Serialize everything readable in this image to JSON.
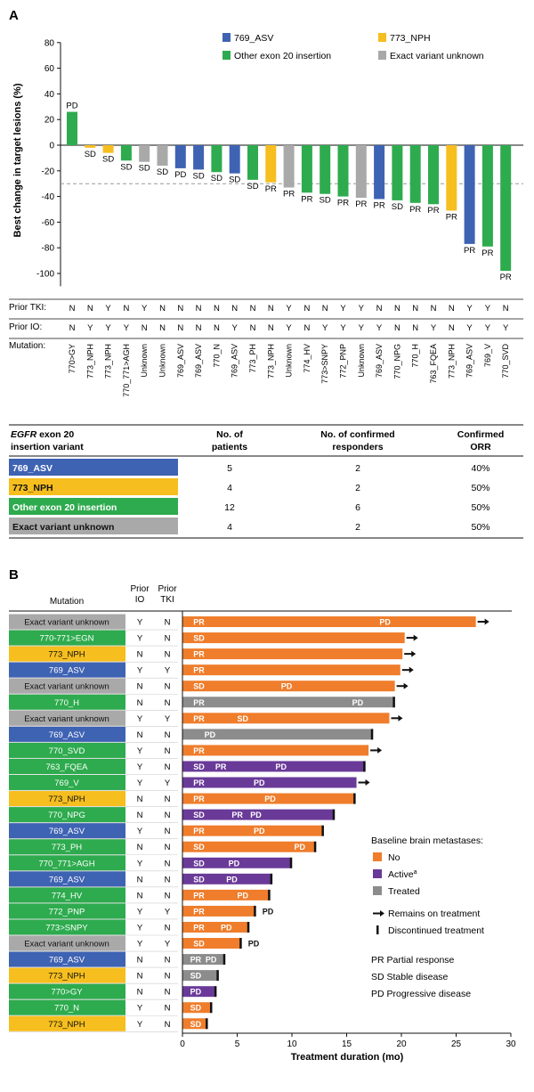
{
  "colors": {
    "asv": "#3f63b3",
    "nph": "#f6be1e",
    "other": "#2eab4e",
    "unknown": "#a9a9a9",
    "no": "#ef7d2b",
    "active": "#6a3a99",
    "treated": "#8c8c8c"
  },
  "panelA": {
    "label": "A",
    "legend": [
      {
        "name": "769_ASV",
        "color": "asv"
      },
      {
        "name": "773_NPH",
        "color": "nph"
      },
      {
        "name": "Other exon 20 insertion",
        "color": "other"
      },
      {
        "name": "Exact variant unknown",
        "color": "unknown"
      }
    ],
    "row_labels": {
      "tki": "Prior TKI:",
      "io": "Prior IO:",
      "mut": "Mutation:"
    },
    "table": {
      "header": {
        "variant_em": "EGFR",
        "variant_rest": " exon 20",
        "variant_line2": "insertion variant",
        "patients1": "No. of",
        "patients2": "patients",
        "responders1": "No. of confirmed",
        "responders2": "responders",
        "orr1": "Confirmed",
        "orr2": "ORR"
      },
      "rows": [
        {
          "variant": "769_ASV",
          "color": "asv",
          "patients": "5",
          "responders": "2",
          "orr": "40%"
        },
        {
          "variant": "773_NPH",
          "color": "nph",
          "patients": "4",
          "responders": "2",
          "orr": "50%"
        },
        {
          "variant": "Other exon 20 insertion",
          "color": "other",
          "patients": "12",
          "responders": "6",
          "orr": "50%"
        },
        {
          "variant": "Exact variant unknown",
          "color": "unknown",
          "patients": "4",
          "responders": "2",
          "orr": "50%"
        }
      ]
    }
  },
  "panelB": {
    "label": "B",
    "col_headers": {
      "mutation": "Mutation",
      "io1": "Prior",
      "io2": "IO",
      "tki1": "Prior",
      "tki2": "TKI"
    },
    "legend_title": "Baseline brain metastases:",
    "legend": [
      {
        "name": "No",
        "color": "no"
      },
      {
        "name": "Active",
        "sup": "a",
        "color": "active"
      },
      {
        "name": "Treated",
        "color": "treated"
      }
    ],
    "symbols": [
      {
        "name": "Remains on treatment",
        "kind": "arrow"
      },
      {
        "name": "Discontinued treatment",
        "kind": "tick"
      }
    ],
    "abbrev": [
      "PR Partial response",
      "SD Stable disease",
      "PD Progressive disease"
    ]
  },
  "chart_data": [
    {
      "type": "bar",
      "ylabel": "Best change in target lesions (%)",
      "ylim": [
        -110,
        80
      ],
      "yticks": [
        80,
        60,
        40,
        20,
        0,
        -20,
        -40,
        -60,
        -80,
        -100
      ],
      "threshold": -30,
      "bars": [
        {
          "mutation": "770>GY",
          "value": 26,
          "group": "other",
          "response": "PD",
          "tki": "N",
          "io": "N"
        },
        {
          "mutation": "773_NPH",
          "value": -2,
          "group": "nph",
          "response": "SD",
          "tki": "N",
          "io": "Y"
        },
        {
          "mutation": "773_NPH",
          "value": -6,
          "group": "nph",
          "response": "SD",
          "tki": "Y",
          "io": "Y"
        },
        {
          "mutation": "770_771>AGH",
          "value": -12,
          "group": "other",
          "response": "SD",
          "tki": "N",
          "io": "Y"
        },
        {
          "mutation": "Unknown",
          "value": -13,
          "group": "unknown",
          "response": "SD",
          "tki": "Y",
          "io": "N"
        },
        {
          "mutation": "Unknown",
          "value": -16,
          "group": "unknown",
          "response": "SD",
          "tki": "N",
          "io": "N"
        },
        {
          "mutation": "769_ASV",
          "value": -18,
          "group": "asv",
          "response": "PD",
          "tki": "N",
          "io": "N"
        },
        {
          "mutation": "769_ASV",
          "value": -19,
          "group": "asv",
          "response": "SD",
          "tki": "N",
          "io": "N"
        },
        {
          "mutation": "770_N",
          "value": -21,
          "group": "other",
          "response": "SD",
          "tki": "N",
          "io": "N"
        },
        {
          "mutation": "769_ASV",
          "value": -22,
          "group": "asv",
          "response": "SD",
          "tki": "N",
          "io": "Y"
        },
        {
          "mutation": "773_PH",
          "value": -27,
          "group": "other",
          "response": "SD",
          "tki": "N",
          "io": "N"
        },
        {
          "mutation": "773_NPH",
          "value": -29,
          "group": "nph",
          "response": "PR",
          "tki": "N",
          "io": "N"
        },
        {
          "mutation": "Unknown",
          "value": -33,
          "group": "unknown",
          "response": "PR",
          "tki": "Y",
          "io": "Y"
        },
        {
          "mutation": "774_HV",
          "value": -37,
          "group": "other",
          "response": "PR",
          "tki": "N",
          "io": "N"
        },
        {
          "mutation": "773>SNPY",
          "value": -38,
          "group": "other",
          "response": "SD",
          "tki": "N",
          "io": "Y"
        },
        {
          "mutation": "772_PNP",
          "value": -40,
          "group": "other",
          "response": "PR",
          "tki": "Y",
          "io": "Y"
        },
        {
          "mutation": "Unknown",
          "value": -41,
          "group": "unknown",
          "response": "PR",
          "tki": "Y",
          "io": "Y"
        },
        {
          "mutation": "769_ASV",
          "value": -42,
          "group": "asv",
          "response": "PR",
          "tki": "N",
          "io": "Y"
        },
        {
          "mutation": "770_NPG",
          "value": -43,
          "group": "other",
          "response": "SD",
          "tki": "N",
          "io": "N"
        },
        {
          "mutation": "770_H",
          "value": -45,
          "group": "other",
          "response": "PR",
          "tki": "N",
          "io": "N"
        },
        {
          "mutation": "763_FQEA",
          "value": -46,
          "group": "other",
          "response": "PR",
          "tki": "N",
          "io": "Y"
        },
        {
          "mutation": "773_NPH",
          "value": -51,
          "group": "nph",
          "response": "PR",
          "tki": "N",
          "io": "N"
        },
        {
          "mutation": "769_ASV",
          "value": -77,
          "group": "asv",
          "response": "PR",
          "tki": "Y",
          "io": "Y"
        },
        {
          "mutation": "769_V",
          "value": -79,
          "group": "other",
          "response": "PR",
          "tki": "Y",
          "io": "Y"
        },
        {
          "mutation": "770_SVD",
          "value": -98,
          "group": "other",
          "response": "PR",
          "tki": "N",
          "io": "Y"
        }
      ]
    },
    {
      "type": "bar",
      "orientation": "horizontal",
      "xlabel": "Treatment duration (mo)",
      "xlim": [
        0,
        30
      ],
      "xticks": [
        0,
        5,
        10,
        15,
        20,
        25,
        30
      ],
      "rows": [
        {
          "mutation": "Exact variant unknown",
          "group": "unknown",
          "io": "Y",
          "tki": "N",
          "duration": 26.8,
          "status": "no",
          "ongoing": true,
          "labels": [
            {
              "t": "PR",
              "x": 1
            },
            {
              "t": "PD",
              "x": 18
            }
          ]
        },
        {
          "mutation": "770-771>EGN",
          "group": "other",
          "io": "Y",
          "tki": "N",
          "duration": 20.3,
          "status": "no",
          "ongoing": true,
          "labels": [
            {
              "t": "SD",
              "x": 1
            }
          ]
        },
        {
          "mutation": "773_NPH",
          "group": "nph",
          "io": "N",
          "tki": "N",
          "duration": 20.1,
          "status": "no",
          "ongoing": true,
          "labels": [
            {
              "t": "PR",
              "x": 1
            }
          ]
        },
        {
          "mutation": "769_ASV",
          "group": "asv",
          "io": "Y",
          "tki": "Y",
          "duration": 19.9,
          "status": "no",
          "ongoing": true,
          "labels": [
            {
              "t": "PR",
              "x": 1
            }
          ]
        },
        {
          "mutation": "Exact variant unknown",
          "group": "unknown",
          "io": "N",
          "tki": "N",
          "duration": 19.4,
          "status": "no",
          "ongoing": true,
          "labels": [
            {
              "t": "SD",
              "x": 1
            },
            {
              "t": "PD",
              "x": 9
            }
          ]
        },
        {
          "mutation": "770_H",
          "group": "other",
          "io": "N",
          "tki": "N",
          "duration": 19.3,
          "status": "treated",
          "ongoing": false,
          "labels": [
            {
              "t": "PR",
              "x": 1
            },
            {
              "t": "PD",
              "x": 15.5
            }
          ]
        },
        {
          "mutation": "Exact variant unknown",
          "group": "unknown",
          "io": "Y",
          "tki": "Y",
          "duration": 18.9,
          "status": "no",
          "ongoing": true,
          "labels": [
            {
              "t": "PR",
              "x": 1
            },
            {
              "t": "SD",
              "x": 5
            }
          ]
        },
        {
          "mutation": "769_ASV",
          "group": "asv",
          "io": "N",
          "tki": "N",
          "duration": 17.3,
          "status": "treated",
          "ongoing": false,
          "labels": [
            {
              "t": "PD",
              "x": 2
            }
          ]
        },
        {
          "mutation": "770_SVD",
          "group": "other",
          "io": "Y",
          "tki": "N",
          "duration": 17.0,
          "status": "no",
          "ongoing": true,
          "labels": [
            {
              "t": "PR",
              "x": 1
            }
          ]
        },
        {
          "mutation": "763_FQEA",
          "group": "other",
          "io": "Y",
          "tki": "N",
          "duration": 16.6,
          "status": "active",
          "ongoing": false,
          "labels": [
            {
              "t": "SD",
              "x": 1
            },
            {
              "t": "PR",
              "x": 3
            },
            {
              "t": "PD",
              "x": 8.5
            }
          ]
        },
        {
          "mutation": "769_V",
          "group": "other",
          "io": "Y",
          "tki": "Y",
          "duration": 15.9,
          "status": "active",
          "ongoing": true,
          "labels": [
            {
              "t": "PR",
              "x": 1
            },
            {
              "t": "PD",
              "x": 6.5
            }
          ]
        },
        {
          "mutation": "773_NPH",
          "group": "nph",
          "io": "N",
          "tki": "N",
          "duration": 15.7,
          "status": "no",
          "ongoing": false,
          "labels": [
            {
              "t": "PR",
              "x": 1
            },
            {
              "t": "PD",
              "x": 7.5
            }
          ]
        },
        {
          "mutation": "770_NPG",
          "group": "other",
          "io": "N",
          "tki": "N",
          "duration": 13.8,
          "status": "active",
          "ongoing": false,
          "labels": [
            {
              "t": "SD",
              "x": 1
            },
            {
              "t": "PR",
              "x": 4.5
            },
            {
              "t": "PD",
              "x": 6.2
            }
          ]
        },
        {
          "mutation": "769_ASV",
          "group": "asv",
          "io": "Y",
          "tki": "N",
          "duration": 12.8,
          "status": "no",
          "ongoing": false,
          "labels": [
            {
              "t": "PR",
              "x": 1
            },
            {
              "t": "PD",
              "x": 6.5
            }
          ]
        },
        {
          "mutation": "773_PH",
          "group": "other",
          "io": "N",
          "tki": "N",
          "duration": 12.1,
          "status": "no",
          "ongoing": false,
          "labels": [
            {
              "t": "SD",
              "x": 1
            },
            {
              "t": "PD",
              "x": 10.2
            }
          ]
        },
        {
          "mutation": "770_771>AGH",
          "group": "other",
          "io": "Y",
          "tki": "N",
          "duration": 9.9,
          "status": "active",
          "ongoing": false,
          "labels": [
            {
              "t": "SD",
              "x": 1
            },
            {
              "t": "PD",
              "x": 4.2
            }
          ]
        },
        {
          "mutation": "769_ASV",
          "group": "asv",
          "io": "N",
          "tki": "N",
          "duration": 8.1,
          "status": "active",
          "ongoing": false,
          "labels": [
            {
              "t": "SD",
              "x": 1
            },
            {
              "t": "PD",
              "x": 4
            }
          ]
        },
        {
          "mutation": "774_HV",
          "group": "other",
          "io": "N",
          "tki": "N",
          "duration": 7.9,
          "status": "no",
          "ongoing": false,
          "labels": [
            {
              "t": "PR",
              "x": 1
            },
            {
              "t": "PD",
              "x": 5
            }
          ]
        },
        {
          "mutation": "772_PNP",
          "group": "other",
          "io": "Y",
          "tki": "Y",
          "duration": 6.6,
          "status": "no",
          "ongoing": false,
          "labels": [
            {
              "t": "PR",
              "x": 1
            },
            {
              "t": "PD",
              "x": 7.3,
              "outside": true
            }
          ]
        },
        {
          "mutation": "773>SNPY",
          "group": "other",
          "io": "Y",
          "tki": "N",
          "duration": 6.0,
          "status": "no",
          "ongoing": false,
          "labels": [
            {
              "t": "PR",
              "x": 1
            },
            {
              "t": "PD",
              "x": 3.5
            }
          ]
        },
        {
          "mutation": "Exact variant unknown",
          "group": "unknown",
          "io": "Y",
          "tki": "Y",
          "duration": 5.3,
          "status": "no",
          "ongoing": false,
          "labels": [
            {
              "t": "SD",
              "x": 1
            },
            {
              "t": "PD",
              "x": 6.0,
              "outside": true
            }
          ]
        },
        {
          "mutation": "769_ASV",
          "group": "asv",
          "io": "N",
          "tki": "N",
          "duration": 3.8,
          "status": "treated",
          "ongoing": false,
          "labels": [
            {
              "t": "PR",
              "x": 0.7
            },
            {
              "t": "PD",
              "x": 2.1
            }
          ]
        },
        {
          "mutation": "773_NPH",
          "group": "nph",
          "io": "N",
          "tki": "N",
          "duration": 3.2,
          "status": "treated",
          "ongoing": false,
          "labels": [
            {
              "t": "SD",
              "x": 0.7
            }
          ]
        },
        {
          "mutation": "770>GY",
          "group": "other",
          "io": "N",
          "tki": "N",
          "duration": 3.0,
          "status": "active",
          "ongoing": false,
          "labels": [
            {
              "t": "PD",
              "x": 0.7
            }
          ]
        },
        {
          "mutation": "770_N",
          "group": "other",
          "io": "Y",
          "tki": "N",
          "duration": 2.6,
          "status": "no",
          "ongoing": false,
          "labels": [
            {
              "t": "SD",
              "x": 0.7
            }
          ]
        },
        {
          "mutation": "773_NPH",
          "group": "nph",
          "io": "Y",
          "tki": "N",
          "duration": 2.2,
          "status": "no",
          "ongoing": false,
          "labels": [
            {
              "t": "SD",
              "x": 0.7
            }
          ]
        }
      ]
    }
  ]
}
